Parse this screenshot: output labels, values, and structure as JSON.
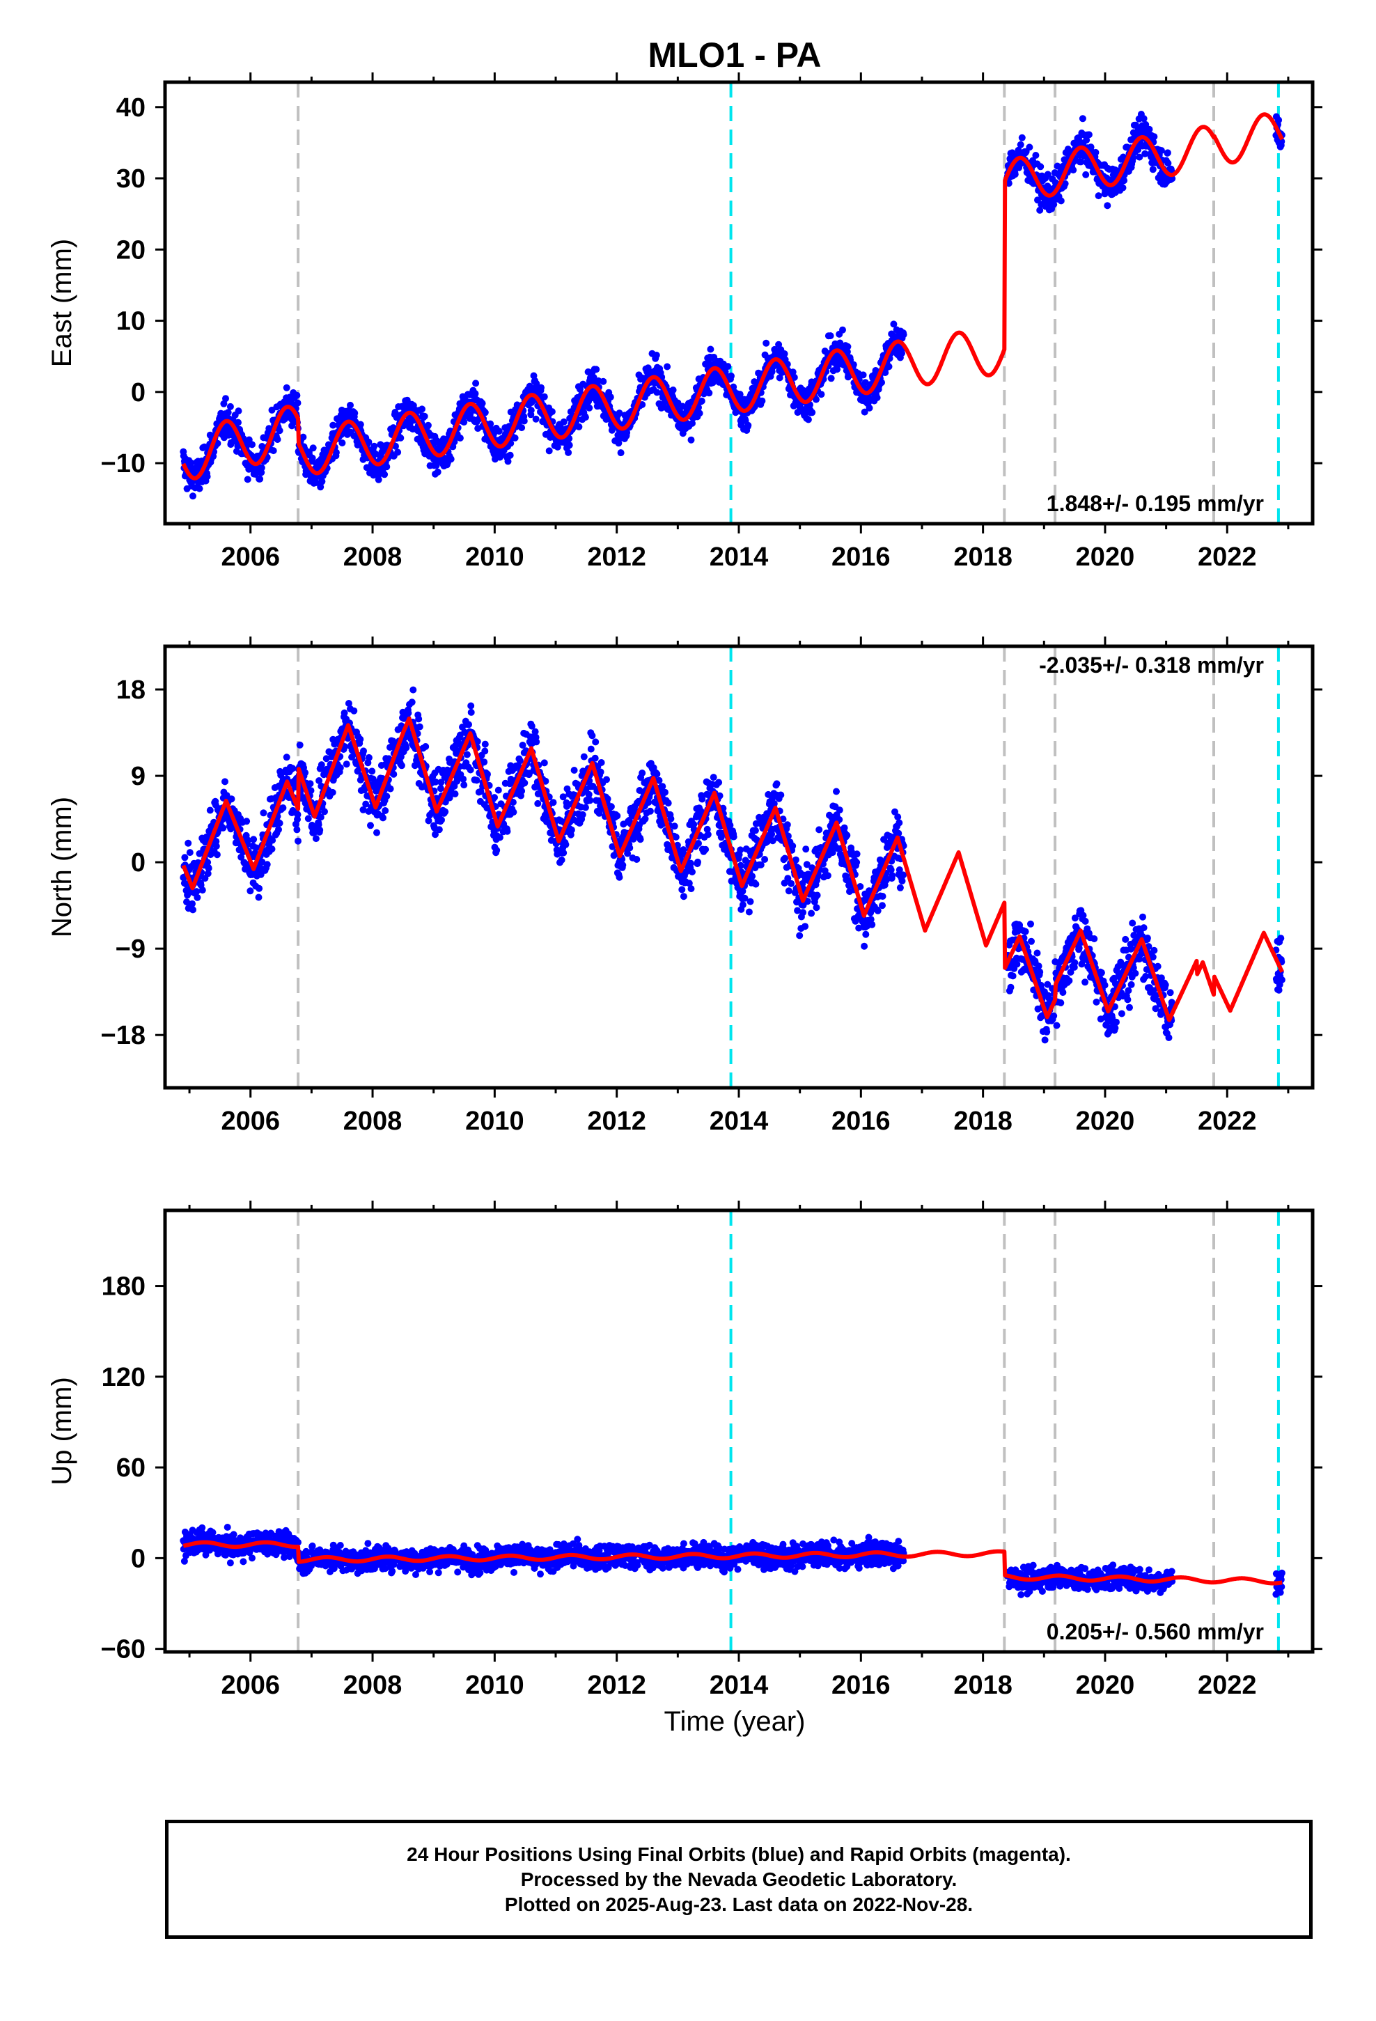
{
  "title": "MLO1 - PA",
  "xlabel": "Time (year)",
  "colors": {
    "observed": "#0000ff",
    "model": "#ff0000",
    "equipment_change": "#c0c0c0",
    "earthquake": "#00e5ee",
    "axes": "#000000"
  },
  "x_ticks": [
    "2006",
    "2008",
    "2010",
    "2012",
    "2014",
    "2016",
    "2018",
    "2020",
    "2022"
  ],
  "event_lines": {
    "gray": [
      2006.78,
      2018.35,
      2019.18,
      2021.78
    ],
    "cyan": [
      2013.87,
      2022.84
    ]
  },
  "chart_data": [
    {
      "type": "scatter",
      "component": "east",
      "ylabel": "East (mm)",
      "xlim": [
        2004.6,
        2023.4
      ],
      "ylim": [
        -18.5,
        43.5
      ],
      "yticks": [
        "40",
        "30",
        "20",
        "10",
        "0",
        "−10"
      ],
      "rate": "1.848+/- 0.195 mm/yr",
      "rate_position": "bottom-right",
      "series": [
        {
          "name": "Final Orbits (blue)",
          "style": "points",
          "x_range": [
            2004.9,
            2022.9
          ],
          "segments": [
            [
              2004.9,
              2016.7
            ],
            [
              2018.4,
              2021.1
            ],
            [
              2022.8,
              2022.9
            ]
          ]
        },
        {
          "style": "line",
          "x_range": [
            2004.9,
            2022.9
          ]
        }
      ]
    },
    {
      "type": "scatter",
      "component": "north",
      "ylabel": "North (mm)",
      "xlim": [
        2004.6,
        2023.4
      ],
      "ylim": [
        -23.5,
        22.5
      ],
      "yticks": [
        "18",
        "9",
        "0",
        "−9",
        "−18"
      ],
      "rate": "-2.035+/- 0.318 mm/yr",
      "rate_position": "top-right",
      "series": [
        {
          "style": "points",
          "x_range": [
            2004.9,
            2022.9
          ],
          "segments": [
            [
              2004.9,
              2016.7
            ],
            [
              2018.4,
              2021.1
            ],
            [
              2022.8,
              2022.9
            ]
          ]
        },
        {
          "style": "line",
          "x_range": [
            2004.9,
            2022.9
          ]
        }
      ]
    },
    {
      "type": "scatter",
      "component": "up",
      "ylabel": "Up (mm)",
      "xlim": [
        2004.6,
        2023.4
      ],
      "ylim": [
        -62,
        230
      ],
      "yticks": [
        "180",
        "120",
        "60",
        "0",
        "−60"
      ],
      "rate": "0.205+/- 0.560 mm/yr",
      "rate_position": "bottom-right",
      "series": [
        {
          "style": "points",
          "x_range": [
            2004.9,
            2022.9
          ],
          "segments": [
            [
              2004.9,
              2016.7
            ],
            [
              2018.4,
              2021.1
            ],
            [
              2022.8,
              2022.9
            ]
          ]
        },
        {
          "style": "line",
          "x_range": [
            2004.9,
            2022.9
          ]
        }
      ]
    }
  ],
  "caption": {
    "line1": "24 Hour Positions Using Final Orbits (blue) and Rapid Orbits (magenta).",
    "line2": "Processed by the Nevada Geodetic Laboratory.",
    "line3": "Plotted on 2025-Aug-23. Last data on 2022-Nov-28."
  }
}
